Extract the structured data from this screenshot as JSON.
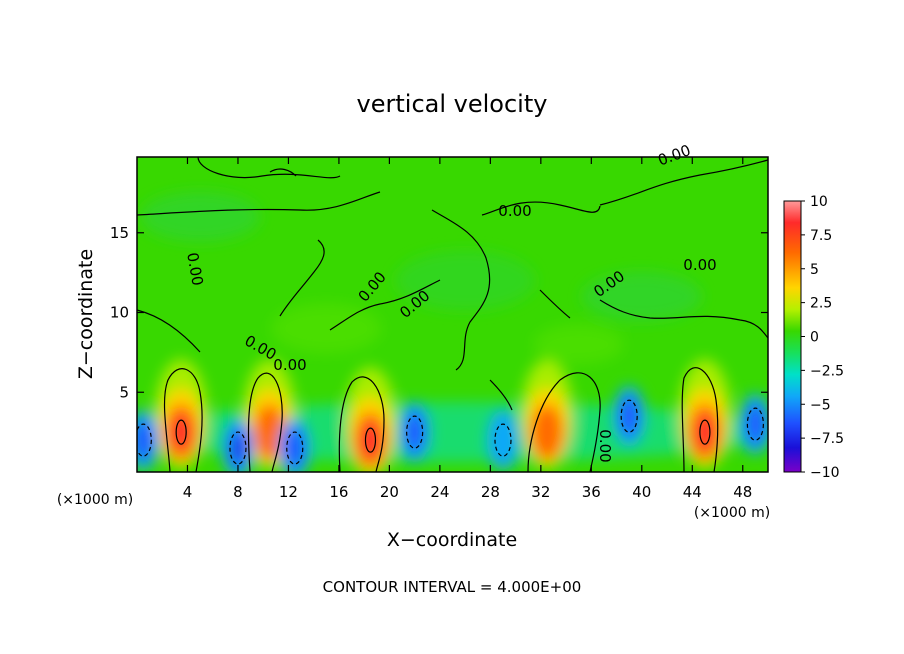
{
  "chart_data": {
    "type": "heatmap",
    "title": "vertical velocity",
    "xlabel": "X−coordinate",
    "ylabel": "Z−coordinate",
    "x_unit_left": "(×1000 m)",
    "x_unit_right": "(×1000 m)",
    "xlim": [
      0,
      50
    ],
    "ylim": [
      0,
      19.75
    ],
    "x_ticks": [
      "4",
      "8",
      "12",
      "16",
      "20",
      "24",
      "28",
      "32",
      "36",
      "40",
      "44",
      "48"
    ],
    "x_tick_values": [
      4,
      8,
      12,
      16,
      20,
      24,
      28,
      32,
      36,
      40,
      44,
      48
    ],
    "y_ticks": [
      "5",
      "10",
      "15"
    ],
    "y_tick_values": [
      5,
      10,
      15
    ],
    "colorbar": {
      "labels": [
        "10",
        "7.5",
        "5",
        "2.5",
        "0",
        "−2.5",
        "−5",
        "−7.5",
        "−10"
      ],
      "values": [
        10,
        7.5,
        5,
        2.5,
        0,
        -2.5,
        -5,
        -7.5,
        -10
      ],
      "colors": [
        "#ff9a9a",
        "#ff2a2a",
        "#ff6a00",
        "#ffd500",
        "#b5f000",
        "#38d800",
        "#18e05a",
        "#00e0c8",
        "#10a8f8",
        "#1f50ff",
        "#1a10d8",
        "#7a00c8"
      ]
    },
    "contour_label": "0.00",
    "updrafts": [
      {
        "x": 3.5,
        "z": 2.5,
        "w": 9.0
      },
      {
        "x": 10.5,
        "z": 2.5,
        "w": 6.0
      },
      {
        "x": 18.5,
        "z": 2.0,
        "w": 9.0
      },
      {
        "x": 32.5,
        "z": 2.5,
        "w": 7.0
      },
      {
        "x": 45.0,
        "z": 2.5,
        "w": 8.5
      }
    ],
    "downdrafts": [
      {
        "x": 0.5,
        "z": 2.0,
        "w": -6.0
      },
      {
        "x": 8.0,
        "z": 1.5,
        "w": -7.0
      },
      {
        "x": 12.5,
        "z": 1.5,
        "w": -6.0
      },
      {
        "x": 22.0,
        "z": 2.5,
        "w": -5.5
      },
      {
        "x": 29.0,
        "z": 2.0,
        "w": -5.0
      },
      {
        "x": 39.0,
        "z": 3.5,
        "w": -6.5
      },
      {
        "x": 49.0,
        "z": 3.0,
        "w": -6.0
      }
    ],
    "footer": "CONTOUR INTERVAL = 4.000E+00"
  }
}
